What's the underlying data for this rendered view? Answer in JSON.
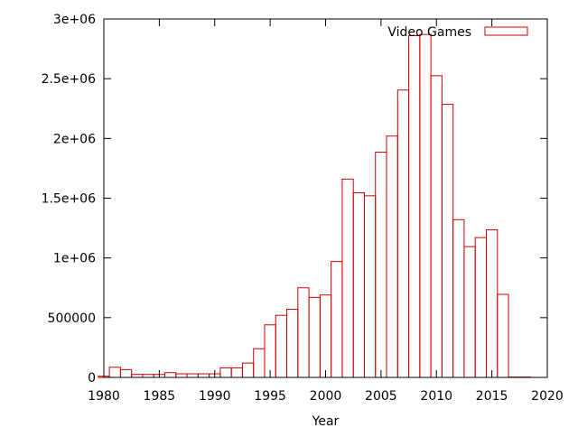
{
  "chart_data": {
    "type": "bar",
    "xlabel": "Year",
    "ylabel": "",
    "title": "",
    "xlim": [
      1980,
      2020
    ],
    "ylim": [
      0,
      3000000
    ],
    "x_ticks": [
      1980,
      1985,
      1990,
      1995,
      2000,
      2005,
      2010,
      2015,
      2020
    ],
    "y_ticks": [
      0,
      500000,
      1000000,
      1500000,
      2000000,
      2500000,
      3000000
    ],
    "y_tick_labels": [
      "0",
      "500000",
      "1e+06",
      "1.5e+06",
      "2e+06",
      "2.5e+06",
      "3e+06"
    ],
    "legend": {
      "position": "top-right"
    },
    "bar_color": "#cc0000",
    "series": [
      {
        "name": "Video Games",
        "x": [
          1980,
          1981,
          1982,
          1983,
          1984,
          1985,
          1986,
          1987,
          1988,
          1989,
          1990,
          1991,
          1992,
          1993,
          1994,
          1995,
          1996,
          1997,
          1998,
          1999,
          2000,
          2001,
          2002,
          2003,
          2004,
          2005,
          2006,
          2007,
          2008,
          2009,
          2010,
          2011,
          2012,
          2013,
          2014,
          2015,
          2016,
          2017,
          2018
        ],
        "values": [
          10000,
          85000,
          65000,
          25000,
          25000,
          25000,
          40000,
          30000,
          30000,
          30000,
          30000,
          80000,
          80000,
          120000,
          240000,
          440000,
          520000,
          570000,
          750000,
          670000,
          690000,
          970000,
          1660000,
          1545000,
          1520000,
          1885000,
          2020000,
          2405000,
          2860000,
          2870000,
          2525000,
          2285000,
          1320000,
          1095000,
          1170000,
          1235000,
          695000,
          3000,
          3000
        ]
      }
    ]
  }
}
